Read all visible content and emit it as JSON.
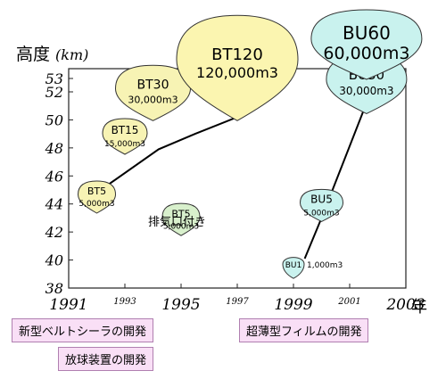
{
  "y_axis": {
    "title": "高度",
    "unit": "(km)"
  },
  "x_unit": "年",
  "exhaust_label": "排気口付き",
  "notes": [
    "新型ベルトシーラの開発",
    "放球装置の開発",
    "超薄型フィルムの開発"
  ],
  "colors": {
    "bt_fill": "#f7f3b4",
    "bu_fill": "#c9f2ee",
    "green_fill": "#d8f0cc",
    "big_bt_fill": "#fbf5b0",
    "balloon_stroke": "#333333",
    "note_bg": "#f9dff6",
    "note_border": "#b07fb0"
  },
  "chart_data": {
    "type": "scatter",
    "x_ticks_major": [
      1991,
      1995,
      1999,
      2003
    ],
    "x_ticks_minor": [
      1993,
      1997,
      2001
    ],
    "y_ticks": [
      38,
      40,
      42,
      44,
      46,
      48,
      50,
      52,
      53
    ],
    "xlim": [
      1991,
      2003
    ],
    "ylim": [
      38,
      53
    ],
    "balloons": [
      {
        "name": "BT5",
        "volume": "5,000m3",
        "year": 1992.0,
        "altitude": 43.6,
        "color": "bt_fill"
      },
      {
        "name": "BT5",
        "volume": "5,000m3",
        "year": 1995.0,
        "altitude": 42.0,
        "color": "green_fill"
      },
      {
        "name": "BT15",
        "volume": "15,000m3",
        "year": 1993.0,
        "altitude": 47.8,
        "color": "bt_fill"
      },
      {
        "name": "BT30",
        "volume": "30,000m3",
        "year": 1994.0,
        "altitude": 50.2,
        "color": "bt_fill"
      },
      {
        "name": "BT120",
        "volume": "120,000m3",
        "year": 1997.0,
        "altitude": 50.2,
        "color": "big_bt_fill"
      },
      {
        "name": "BU1",
        "volume": "1,000m3",
        "year": 1999.0,
        "altitude": 39.2,
        "color": "bu_fill"
      },
      {
        "name": "BU5",
        "volume": "5,000m3",
        "year": 2000.0,
        "altitude": 43.0,
        "color": "bu_fill"
      },
      {
        "name": "BU30",
        "volume": "30,000m3",
        "year": 2001.6,
        "altitude": 50.7,
        "color": "bu_fill"
      },
      {
        "name": "BU60",
        "volume": "60,000m3",
        "year": 2001.6,
        "altitude": 53.2,
        "color": "bu_fill"
      }
    ],
    "trend_lines": [
      {
        "points": [
          [
            1992.0,
            44.8
          ],
          [
            1994.2,
            47.9
          ],
          [
            1995.5,
            49.0
          ],
          [
            1997.0,
            50.2
          ]
        ]
      },
      {
        "points": [
          [
            1999.4,
            40.1
          ],
          [
            2000.0,
            43.0
          ],
          [
            2001.5,
            50.7
          ]
        ]
      }
    ]
  }
}
